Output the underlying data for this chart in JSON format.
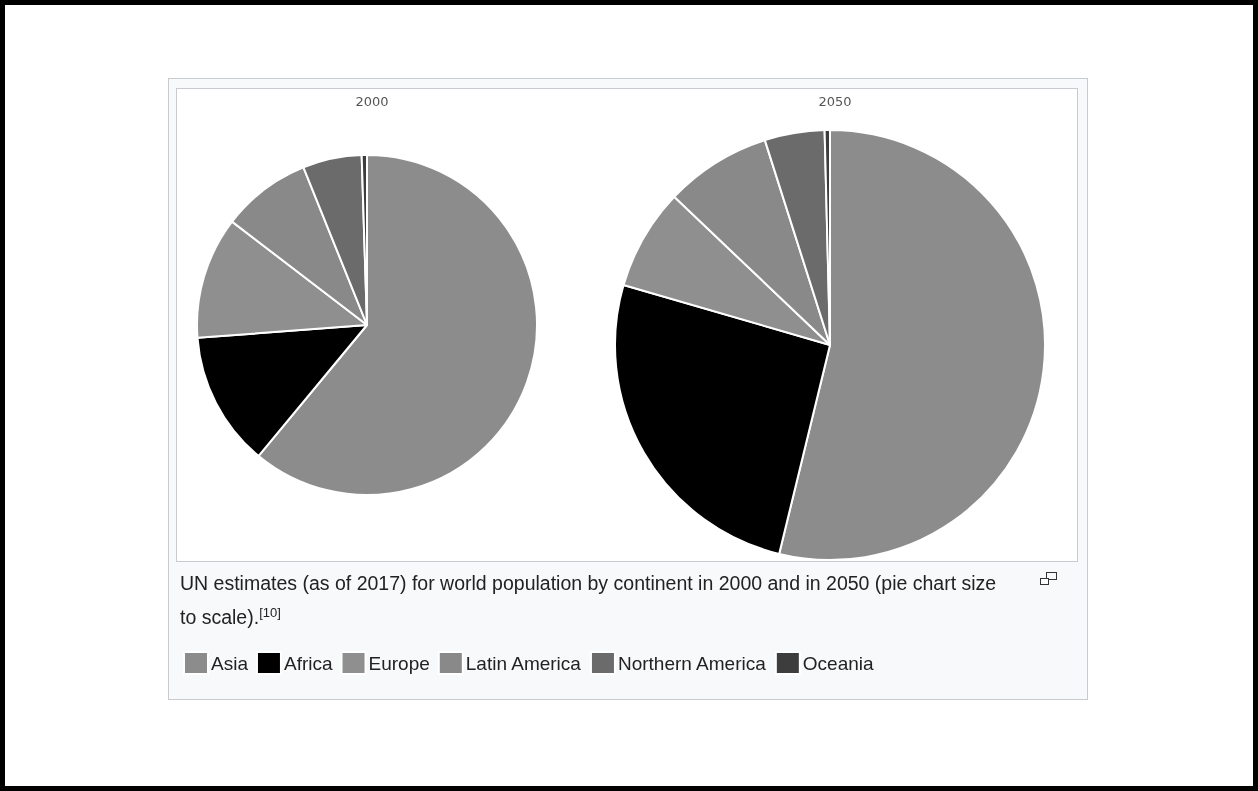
{
  "chart_data": {
    "type": "pie",
    "categories": [
      "Asia",
      "Africa",
      "Europe",
      "Latin America",
      "Northern America",
      "Oceania"
    ],
    "colors": [
      "#8c8c8c",
      "#000000",
      "#8f8f8f",
      "#898989",
      "#6b6b6b",
      "#3d3d3d"
    ],
    "series": [
      {
        "name": "2000",
        "values": [
          61,
          12.8,
          11.6,
          8.5,
          5.6,
          0.5
        ]
      },
      {
        "name": "2050",
        "values": [
          53.8,
          25.7,
          7.6,
          8.0,
          4.5,
          0.4
        ]
      }
    ],
    "legend": "bottom",
    "annotations": [
      "UN estimates (as of 2017) for world population by continent in 2000 and in 2050 (pie chart size to scale).$^{[10]}$"
    ]
  }
}
